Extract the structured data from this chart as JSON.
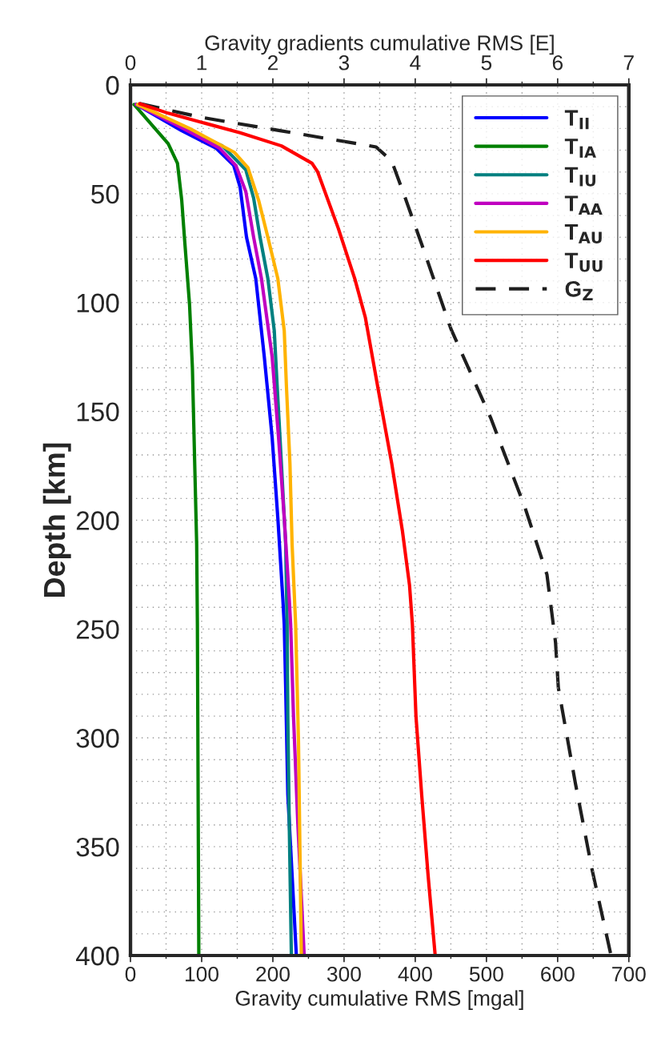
{
  "chart_data": {
    "type": "line",
    "orientation": "horizontal",
    "xlabel": "Gravity cumulative RMS [mgal]",
    "x2label": "Gravity gradients cumulative RMS [E]",
    "ylabel": "Depth [km]",
    "xlim": [
      0,
      700
    ],
    "xticks": [
      0,
      {
        "value": 50,
        "label": null
      },
      100,
      {
        "value": 150,
        "label": null
      },
      200,
      {
        "value": 250,
        "label": null
      },
      300,
      {
        "value": 350,
        "label": null
      },
      400,
      {
        "value": 450,
        "label": null
      },
      500,
      {
        "value": 550,
        "label": null
      },
      600,
      {
        "value": 650,
        "label": null
      },
      700
    ],
    "x2lim": [
      0,
      7
    ],
    "x2ticks": [
      0,
      {
        "value": 0.5,
        "label": null
      },
      1,
      {
        "value": 1.5,
        "label": null
      },
      2,
      {
        "value": 2.5,
        "label": null
      },
      3,
      {
        "value": 3.5,
        "label": null
      },
      4,
      {
        "value": 4.5,
        "label": null
      },
      5,
      {
        "value": 5.5,
        "label": null
      },
      6,
      {
        "value": 6.5,
        "label": null
      },
      7
    ],
    "ylim": [
      400,
      0
    ],
    "yticks": [
      0,
      {
        "value": 10,
        "label": null
      },
      {
        "value": 20,
        "label": null
      },
      {
        "value": 30,
        "label": null
      },
      {
        "value": 40,
        "label": null
      },
      50,
      {
        "value": 60,
        "label": null
      },
      {
        "value": 70,
        "label": null
      },
      {
        "value": 80,
        "label": null
      },
      {
        "value": 90,
        "label": null
      },
      100,
      {
        "value": 110,
        "label": null
      },
      {
        "value": 120,
        "label": null
      },
      {
        "value": 130,
        "label": null
      },
      {
        "value": 140,
        "label": null
      },
      150,
      {
        "value": 160,
        "label": null
      },
      {
        "value": 170,
        "label": null
      },
      {
        "value": 180,
        "label": null
      },
      {
        "value": 190,
        "label": null
      },
      200,
      {
        "value": 210,
        "label": null
      },
      {
        "value": 220,
        "label": null
      },
      {
        "value": 230,
        "label": null
      },
      {
        "value": 240,
        "label": null
      },
      250,
      {
        "value": 260,
        "label": null
      },
      {
        "value": 270,
        "label": null
      },
      {
        "value": 280,
        "label": null
      },
      {
        "value": 290,
        "label": null
      },
      300,
      {
        "value": 310,
        "label": null
      },
      {
        "value": 320,
        "label": null
      },
      {
        "value": 330,
        "label": null
      },
      {
        "value": 340,
        "label": null
      },
      350,
      {
        "value": 360,
        "label": null
      },
      {
        "value": 370,
        "label": null
      },
      {
        "value": 380,
        "label": null
      },
      {
        "value": 390,
        "label": null
      },
      400
    ],
    "grid": true,
    "legend": "top right",
    "series": [
      {
        "name": "T$_{II}$",
        "color": "#0000ff",
        "axis": "x2",
        "line_style": "solid",
        "x": [
          9,
          21,
          29,
          37,
          47,
          70,
          89,
          125,
          162,
          199,
          236,
          248,
          277,
          326,
          363,
          400
        ],
        "values": [
          0.08,
          0.72,
          1.2,
          1.45,
          1.54,
          1.63,
          1.76,
          1.88,
          1.99,
          2.07,
          2.14,
          2.16,
          2.18,
          2.21,
          2.27,
          2.33
        ]
      },
      {
        "name": "T$_{IA}$",
        "color": "#008000",
        "axis": "x2",
        "line_style": "solid",
        "x": [
          9,
          27,
          36,
          53,
          71,
          101,
          130,
          171,
          211,
          248,
          400
        ],
        "values": [
          0.05,
          0.53,
          0.66,
          0.72,
          0.76,
          0.83,
          0.87,
          0.9,
          0.93,
          0.94,
          0.96
        ]
      },
      {
        "name": "T$_{IU}$",
        "color": "#008080",
        "axis": "x2",
        "line_style": "solid",
        "x": [
          9,
          20,
          28,
          39,
          52,
          70,
          89,
          113,
          138,
          174,
          211,
          248,
          290,
          339,
          400
        ],
        "values": [
          0.08,
          0.76,
          1.29,
          1.62,
          1.73,
          1.82,
          1.93,
          2.02,
          2.06,
          2.12,
          2.18,
          2.2,
          2.21,
          2.23,
          2.26
        ]
      },
      {
        "name": "T$_{AA}$",
        "color": "#c000c0",
        "axis": "x2",
        "line_style": "solid",
        "x": [
          9,
          20,
          29,
          37,
          49,
          70,
          89,
          125,
          162,
          199,
          236,
          248,
          290,
          339,
          400
        ],
        "values": [
          0.08,
          0.74,
          1.25,
          1.48,
          1.62,
          1.73,
          1.84,
          1.99,
          2.08,
          2.16,
          2.23,
          2.25,
          2.29,
          2.35,
          2.44
        ]
      },
      {
        "name": "T$_{AU}$",
        "color": "#ffb300",
        "axis": "x2",
        "line_style": "solid",
        "x": [
          9,
          20,
          31,
          38,
          53,
          70,
          89,
          113,
          138,
          174,
          211,
          248,
          302,
          351,
          400
        ],
        "values": [
          0.1,
          0.83,
          1.46,
          1.65,
          1.8,
          1.93,
          2.07,
          2.16,
          2.19,
          2.24,
          2.27,
          2.32,
          2.36,
          2.38,
          2.4
        ]
      },
      {
        "name": "T$_{UU}$",
        "color": "#ff0000",
        "axis": "x2",
        "line_style": "solid",
        "x": [
          8.6,
          13,
          22,
          28,
          36,
          40,
          66,
          89,
          107,
          140,
          174,
          205,
          230,
          248,
          290,
          326,
          363,
          400
        ],
        "values": [
          0.13,
          0.53,
          1.54,
          2.12,
          2.55,
          2.63,
          2.92,
          3.15,
          3.3,
          3.48,
          3.67,
          3.82,
          3.92,
          3.96,
          4.01,
          4.09,
          4.18,
          4.28
        ]
      },
      {
        "name": "G$_{Z}$",
        "color": "#1e1e1e",
        "line_style": "dashed",
        "x": [
          8.6,
          15,
          21,
          27,
          28.5,
          35,
          52,
          75,
          112,
          153,
          194,
          225,
          256,
          277,
          321,
          360,
          400
        ],
        "values": [
          13,
          101,
          210,
          319,
          345,
          367,
          386,
          411,
          450,
          506,
          554,
          585,
          597,
          601,
          625,
          648,
          675
        ]
      }
    ]
  }
}
